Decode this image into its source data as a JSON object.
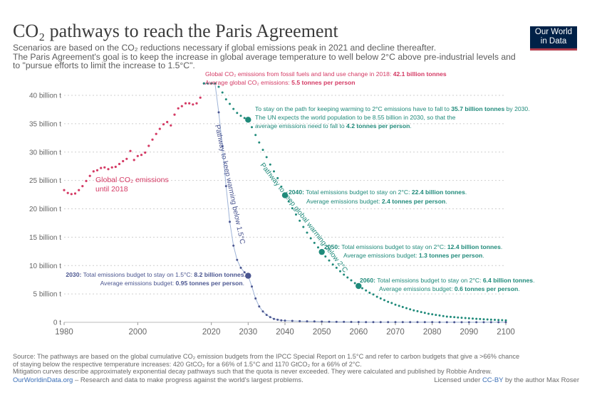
{
  "header": {
    "title": "CO₂ pathways to reach the Paris Agreement",
    "subtitle_1": "Scenarios are based on the CO₂ reductions necessary if global emissions peak in 2021 and decline thereafter.",
    "subtitle_2": "The Paris Agreement's goal is to keep the increase in global average temperature to well below 2°C above pre-industrial levels and",
    "subtitle_3": "to \"pursue efforts to limit the increase to 1.5°C\"."
  },
  "logo": {
    "line1": "Our World",
    "line2": "in Data"
  },
  "colors": {
    "historical": "#d43a64",
    "path15": "#4b5690",
    "path2": "#1f8a7a",
    "grid": "#cfcfcf",
    "axis": "#555555"
  },
  "chart_data": {
    "type": "scatter",
    "title": "CO₂ pathways to reach the Paris Agreement",
    "xlabel": "",
    "ylabel": "",
    "xlim": [
      1980,
      2100
    ],
    "ylim": [
      0,
      42
    ],
    "x_ticks": [
      "1980",
      "2000",
      "2020",
      "2030",
      "2040",
      "2050",
      "2060",
      "2070",
      "2080",
      "2090",
      "2100"
    ],
    "x_tick_values": [
      1980,
      2000,
      2020,
      2030,
      2040,
      2050,
      2060,
      2070,
      2080,
      2090,
      2100
    ],
    "y_ticks": [
      "0 t",
      "5 billion t",
      "10 billion t",
      "15 billion t",
      "20 billion t",
      "25 billion t",
      "30 billion t",
      "35 billion t",
      "40 billion t"
    ],
    "y_tick_values": [
      0,
      5,
      10,
      15,
      20,
      25,
      30,
      35,
      40
    ],
    "series": [
      {
        "name": "Global CO₂ emissions until 2018",
        "label_line1": "Global CO₂ emissions",
        "label_line2": "until 2018",
        "x": [
          1980,
          1981,
          1982,
          1983,
          1984,
          1985,
          1986,
          1987,
          1988,
          1989,
          1990,
          1991,
          1992,
          1993,
          1994,
          1995,
          1996,
          1997,
          1998,
          1999,
          2000,
          2001,
          2002,
          2003,
          2004,
          2005,
          2006,
          2007,
          2008,
          2009,
          2010,
          2011,
          2012,
          2013,
          2014,
          2015,
          2016,
          2017,
          2018
        ],
        "values": [
          23.3,
          22.8,
          22.6,
          22.7,
          23.3,
          24.0,
          24.9,
          25.8,
          26.6,
          26.8,
          27.2,
          27.3,
          27.0,
          27.3,
          27.4,
          27.9,
          28.4,
          28.8,
          30.2,
          28.6,
          29.3,
          29.5,
          29.9,
          31.1,
          32.2,
          33.2,
          34.1,
          34.9,
          35.3,
          34.7,
          36.6,
          37.7,
          38.1,
          38.6,
          38.6,
          38.4,
          38.6,
          39.6,
          42.1
        ]
      },
      {
        "name": "Pathway to keep warming below 1.5°C",
        "x": [
          2018,
          2019,
          2020,
          2021,
          2022,
          2023,
          2024,
          2025,
          2026,
          2027,
          2028,
          2029,
          2030,
          2031,
          2032,
          2033,
          2034,
          2035,
          2036,
          2037,
          2038,
          2039,
          2040,
          2042,
          2044,
          2046,
          2048,
          2050,
          2052,
          2054,
          2056,
          2058,
          2060,
          2062,
          2064,
          2066,
          2068,
          2070,
          2072,
          2074,
          2076,
          2078,
          2080,
          2082,
          2084,
          2086,
          2088,
          2090,
          2092,
          2094,
          2096,
          2098,
          2100
        ],
        "values": [
          42.1,
          42.1,
          42.1,
          42.1,
          37.0,
          31.0,
          24.0,
          17.7,
          13.5,
          11.0,
          9.6,
          8.8,
          8.2,
          6.3,
          4.2,
          2.8,
          1.9,
          1.3,
          0.9,
          0.6,
          0.45,
          0.35,
          0.3,
          0.25,
          0.2,
          0.18,
          0.15,
          0.12,
          0.1,
          0.08,
          0.07,
          0.06,
          0.05,
          0.04,
          0.04,
          0.03,
          0.03,
          0.02,
          0.02,
          0.02,
          0.02,
          0.02,
          0.02,
          0.01,
          0.01,
          0.01,
          0.01,
          0.01,
          0.01,
          0.01,
          0.01,
          0.01,
          0.01
        ]
      },
      {
        "name": "Pathway to keep global warming below 2°C",
        "x": [
          2018,
          2019,
          2020,
          2021,
          2022,
          2023,
          2024,
          2025,
          2026,
          2027,
          2028,
          2029,
          2030,
          2031,
          2032,
          2033,
          2034,
          2035,
          2036,
          2037,
          2038,
          2039,
          2040,
          2041,
          2042,
          2043,
          2044,
          2045,
          2046,
          2047,
          2048,
          2049,
          2050,
          2051,
          2052,
          2053,
          2054,
          2055,
          2056,
          2057,
          2058,
          2059,
          2060,
          2061,
          2062,
          2063,
          2064,
          2065,
          2066,
          2067,
          2068,
          2069,
          2070,
          2071,
          2072,
          2073,
          2074,
          2075,
          2076,
          2077,
          2078,
          2079,
          2080,
          2081,
          2082,
          2083,
          2084,
          2085,
          2086,
          2087,
          2088,
          2089,
          2090,
          2091,
          2092,
          2093,
          2094,
          2095,
          2096,
          2097,
          2098,
          2099,
          2100
        ],
        "values": [
          42.1,
          42.1,
          42.1,
          42.1,
          41.5,
          40.5,
          39.3,
          38.5,
          37.6,
          36.9,
          36.4,
          36.0,
          35.7,
          34.4,
          33.0,
          31.7,
          30.4,
          29.1,
          27.8,
          26.6,
          25.4,
          23.9,
          22.4,
          21.3,
          20.1,
          19.0,
          17.9,
          16.8,
          15.8,
          14.8,
          14.0,
          13.2,
          12.4,
          11.6,
          10.9,
          10.2,
          9.6,
          9.0,
          8.4,
          7.9,
          7.4,
          6.9,
          6.4,
          6.0,
          5.6,
          5.2,
          4.9,
          4.5,
          4.2,
          3.9,
          3.6,
          3.4,
          3.1,
          2.9,
          2.7,
          2.5,
          2.3,
          2.1,
          1.95,
          1.8,
          1.65,
          1.5,
          1.4,
          1.3,
          1.2,
          1.1,
          1.0,
          0.95,
          0.9,
          0.85,
          0.8,
          0.75,
          0.7,
          0.66,
          0.62,
          0.58,
          0.54,
          0.5,
          0.47,
          0.44,
          0.41,
          0.38,
          0.35
        ]
      }
    ],
    "markers": [
      {
        "series": 1,
        "x": 2030,
        "y": 8.2
      },
      {
        "series": 2,
        "x": 2030,
        "y": 35.7
      },
      {
        "series": 2,
        "x": 2040,
        "y": 22.4
      },
      {
        "series": 2,
        "x": 2050,
        "y": 12.4
      },
      {
        "series": 2,
        "x": 2060,
        "y": 6.4
      }
    ],
    "annotations": {
      "top_line1_pre": "Global CO₂ emissions from fossil fuels and land use change in 2018: ",
      "top_line1_bold": "42.1 billion tonnes",
      "top_line2_pre": "Average global CO₂ emissions: ",
      "top_line2_bold": "5.5 tonnes per person",
      "a2030_line1_pre": "To stay on the path for keeping warming to 2°C emissions have to fall to ",
      "a2030_line1_bold": "35.7 billion tonnes",
      "a2030_line1_post": " by 2030.",
      "a2030_line2": "The UN expects the world population to be 8.55 billion in 2030, so that the",
      "a2030_line3_pre": "average emissions need to fall to ",
      "a2030_line3_bold": "4.2 tonnes per person",
      "a2030_line3_post": ".",
      "a2040_line1_year": "2040:",
      "a2040_line1_pre": " Total emissions budget to stay on 2°C: ",
      "a2040_line1_bold": "22.4 billion tonnes",
      "a2040_line1_post": ".",
      "a2040_line2_pre": "Average emissions budget: ",
      "a2040_line2_bold": "2.4 tonnes per person",
      "a2040_line2_post": ".",
      "a2050_line1_year": "2050:",
      "a2050_line1_pre": " Total emissions budget to stay on 2°C: ",
      "a2050_line1_bold": "12.4 billion tonnes",
      "a2050_line1_post": ".",
      "a2050_line2_pre": "Average emissions budget: ",
      "a2050_line2_bold": "1.3 tonnes per person",
      "a2050_line2_post": ".",
      "a2060_line1_year": "2060:",
      "a2060_line1_pre": " Total emissions budget to stay on 2°C: ",
      "a2060_line1_bold": "6.4 billion tonnes",
      "a2060_line1_post": ".",
      "a2060_line2_pre": "Average emissions budget: ",
      "a2060_line2_bold": "0.6 tonnes per person",
      "a2060_line2_post": ".",
      "a15_line1_year": "2030:",
      "a15_line1_pre": " Total emissions budget to stay on 1.5°C: ",
      "a15_line1_bold": "8.2 billion tonnes",
      "a15_line1_post": ".",
      "a15_line2_pre": "Average emissions budget: ",
      "a15_line2_bold": "0.95 tonnes per person",
      "a15_line2_post": ".",
      "label_15": "Pathway to keep warming below 1.5°C",
      "label_2": "Pathway to keep global warming below 2°C"
    }
  },
  "footer": {
    "source_1": "Source: The pathways are based on the global cumulative CO₂ emission budgets from the IPCC Special Report on 1.5°C and refer to carbon budgets that give a >66% chance",
    "source_2": "of staying below the respective temperature increases: 420 GtCO₂ for a 66% of 1.5°C and 1170 GtCO₂ for a 66% of 2°C.",
    "source_3": "Mitigation curves describe approximately exponential decay pathways such that the quota is never exceeded. They were calculated and published by Robbie Andrew.",
    "site_link": "OurWorldinData.org",
    "site_text": " – Research and data to make progress against the world's largest problems.",
    "license_pre": "Licensed under ",
    "license_link": "CC-BY",
    "license_post": " by the author Max Roser"
  }
}
